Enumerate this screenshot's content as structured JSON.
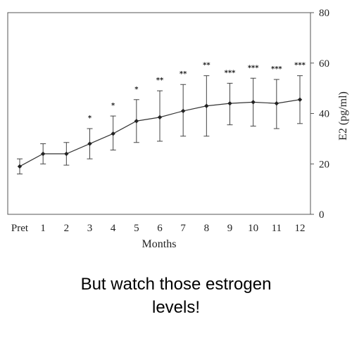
{
  "chart_data": {
    "type": "line",
    "categories": [
      "Pret",
      "1",
      "2",
      "3",
      "4",
      "5",
      "6",
      "7",
      "8",
      "9",
      "10",
      "11",
      "12"
    ],
    "series": [
      {
        "values": [
          19,
          24,
          24,
          28,
          32,
          37,
          38.5,
          41,
          43,
          44,
          44.5,
          44,
          45.5
        ],
        "error_low": [
          16,
          20,
          19.5,
          22,
          25.5,
          28.5,
          29,
          31,
          31,
          35.5,
          35,
          34,
          36
        ],
        "error_high": [
          22,
          28,
          28.5,
          34,
          39,
          45.5,
          49,
          51.5,
          55,
          52,
          54,
          53.5,
          55
        ]
      }
    ],
    "significance": [
      "",
      "",
      "",
      "*",
      "*",
      "*",
      "**",
      "**",
      "**",
      "***",
      "***",
      "***",
      "***"
    ],
    "xlabel": "Months",
    "ylabel": "E2 (pg/ml)",
    "ylim": [
      0,
      80
    ],
    "yticks": [
      "0",
      "20",
      "40",
      "60",
      "80"
    ],
    "y_axis_side": "right",
    "grid": false,
    "colors": {
      "line": "#333333",
      "marker": "#222222"
    }
  },
  "caption": {
    "line1": "But watch those estrogen",
    "line2": "levels!"
  }
}
